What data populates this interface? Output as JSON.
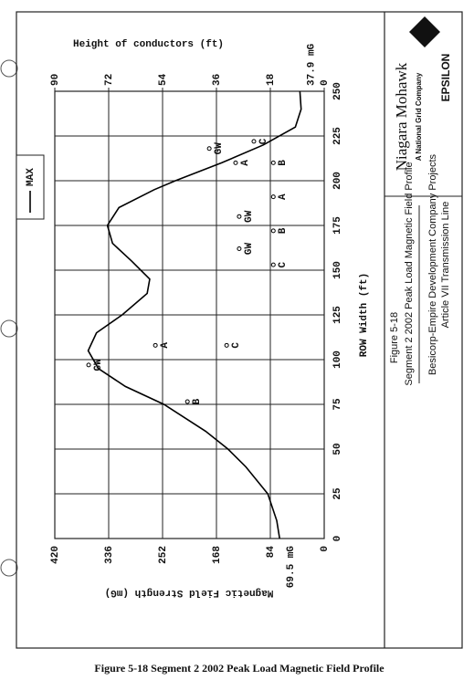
{
  "chart_data": {
    "type": "line",
    "x_label": "ROW Width (ft)",
    "y_label": "Magnetic Field Strength (mG)",
    "y2_label": "Height of conductors (ft)",
    "xlim": [
      0,
      250
    ],
    "xticks": [
      0,
      25,
      50,
      75,
      100,
      125,
      150,
      175,
      200,
      225,
      250
    ],
    "ylim": [
      0,
      420
    ],
    "yticks": [
      0,
      84,
      168,
      252,
      336,
      420
    ],
    "y2lim": [
      0,
      90
    ],
    "y2ticks": [
      0,
      18,
      36,
      54,
      72,
      90
    ],
    "grid": true,
    "series": [
      {
        "name": "MAX",
        "color": "#000000",
        "x": [
          0,
          10,
          25,
          40,
          50,
          60,
          75,
          85,
          95,
          105,
          115,
          125,
          137,
          145,
          155,
          165,
          175,
          185,
          195,
          200,
          210,
          220,
          230,
          240,
          250
        ],
        "values": [
          69.5,
          74,
          88,
          122,
          150,
          185,
          250,
          310,
          352,
          368,
          355,
          315,
          276,
          272,
          300,
          330,
          338,
          320,
          265,
          232,
          160,
          95,
          45,
          36,
          37.9
        ],
        "value_labels": [
          "69.5 mG",
          null,
          null,
          null,
          null,
          null,
          null,
          null,
          null,
          null,
          null,
          null,
          null,
          null,
          null,
          null,
          null,
          null,
          null,
          null,
          null,
          null,
          null,
          null,
          "37.9 mG"
        ]
      }
    ],
    "conductors": {
      "axis": "y2",
      "color": "#000000",
      "x": [
        97,
        108,
        76.5,
        108,
        162,
        180,
        153,
        172,
        191,
        218,
        210,
        222,
        210
      ],
      "values": [
        78.7,
        56.4,
        45.7,
        32.6,
        28.4,
        28.4,
        17,
        17,
        17,
        38.4,
        29.6,
        23.5,
        17
      ],
      "labels": [
        "GW",
        "A",
        "B",
        "C",
        "GW",
        "GW",
        "C",
        "B",
        "A",
        "GW",
        "A",
        "C",
        "B"
      ]
    }
  },
  "title_block": {
    "figure": "Figure 5-18",
    "title": "Segment 2 2002 Peak Load Magnetic Field Profile",
    "project": "Besicorp-Empire Development Company Projects",
    "project_line": "Article VII Transmission Line"
  },
  "logo": {
    "company": "Niagara Mohawk",
    "tagline": "A National Grid Company",
    "consultant": "EPSILON"
  },
  "caption": "Figure 5-18 Segment 2 2002 Peak Load Magnetic Field Profile"
}
